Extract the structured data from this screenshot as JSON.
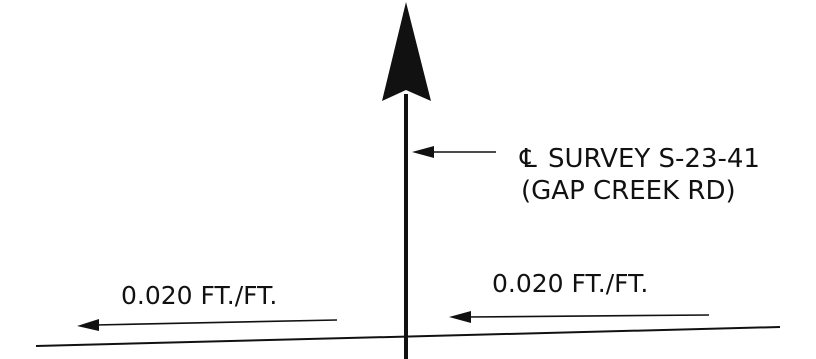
{
  "centerline": {
    "symbol": "℄",
    "line1": "SURVEY S-23-41",
    "line2": "(GAP CREEK RD)"
  },
  "slope_left": {
    "label": "0.020 FT./FT."
  },
  "slope_right": {
    "label": "0.020 FT./FT."
  },
  "colors": {
    "ink": "#111111",
    "background": "#ffffff"
  }
}
